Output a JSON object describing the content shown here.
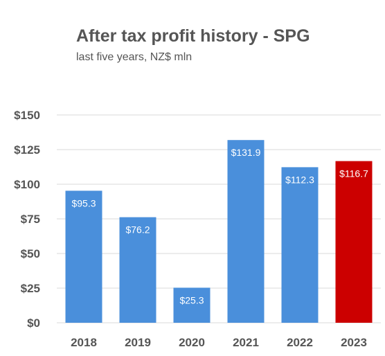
{
  "chart_data": {
    "type": "bar",
    "title": "After tax profit history - SPG",
    "subtitle": "last five years, NZ$ mln",
    "xlabel": "",
    "ylabel": "",
    "categories": [
      "2018",
      "2019",
      "2020",
      "2021",
      "2022",
      "2023"
    ],
    "values": [
      95.3,
      76.2,
      25.3,
      131.9,
      112.3,
      116.7
    ],
    "data_labels": [
      "$95.3",
      "$76.2",
      "$25.3",
      "$131.9",
      "$112.3",
      "$116.7"
    ],
    "ylim": [
      0,
      150
    ],
    "yticks": [
      0,
      25,
      50,
      75,
      100,
      125,
      150
    ],
    "ytick_labels": [
      "$0",
      "$25",
      "$50",
      "$75",
      "$100",
      "$125",
      "$150"
    ],
    "grid": true,
    "colors": {
      "default": "#4a8fdb",
      "highlight": "#cc0000",
      "highlight_category": "2023",
      "grid": "#d9d9d9"
    }
  }
}
